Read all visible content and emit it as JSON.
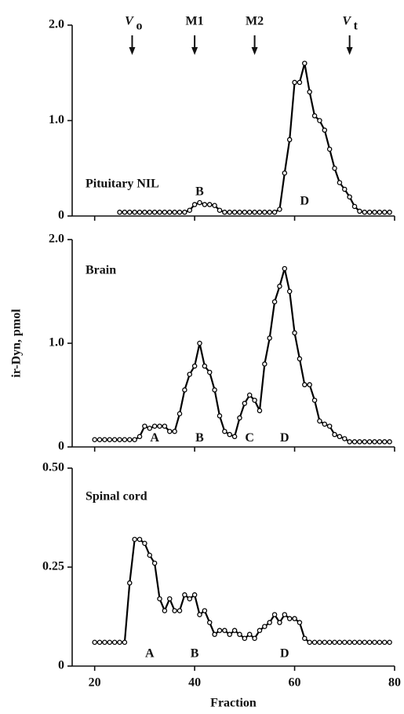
{
  "chart_data": [
    {
      "type": "line",
      "title": "Pituitary NIL",
      "color": "#000000",
      "x": [
        25,
        26,
        27,
        28,
        29,
        30,
        31,
        32,
        33,
        34,
        35,
        36,
        37,
        38,
        39,
        40,
        41,
        42,
        43,
        44,
        45,
        46,
        47,
        48,
        49,
        50,
        51,
        52,
        53,
        54,
        55,
        56,
        57,
        58,
        59,
        60,
        61,
        62,
        63,
        64,
        65,
        66,
        67,
        68,
        69,
        70,
        71,
        72,
        73,
        74,
        75,
        76,
        77,
        78,
        79
      ],
      "values": [
        0.04,
        0.04,
        0.04,
        0.04,
        0.04,
        0.04,
        0.04,
        0.04,
        0.04,
        0.04,
        0.04,
        0.04,
        0.04,
        0.04,
        0.06,
        0.12,
        0.14,
        0.12,
        0.12,
        0.11,
        0.06,
        0.04,
        0.04,
        0.04,
        0.04,
        0.04,
        0.04,
        0.04,
        0.04,
        0.04,
        0.04,
        0.04,
        0.07,
        0.45,
        0.8,
        1.4,
        1.4,
        1.6,
        1.3,
        1.05,
        1.0,
        0.9,
        0.7,
        0.5,
        0.35,
        0.28,
        0.2,
        0.1,
        0.05,
        0.04,
        0.04,
        0.04,
        0.04,
        0.04,
        0.04
      ],
      "xlim": [
        15.5,
        80
      ],
      "xticks": [
        20,
        40,
        60,
        80
      ],
      "ylim": [
        0,
        2
      ],
      "yticks": [
        0,
        {
          "value": 1,
          "label": "1.0"
        },
        {
          "value": 2,
          "label": "2.0"
        }
      ],
      "markers": [
        {
          "label": "V",
          "sub": "o",
          "x": 27.5
        },
        {
          "label": "M1",
          "x": 40
        },
        {
          "label": "M2",
          "x": 52
        },
        {
          "label": "V",
          "sub": "t",
          "x": 71
        }
      ],
      "annotations": [
        {
          "text": "B",
          "x": 41,
          "y": 0.25
        },
        {
          "text": "D",
          "x": 62,
          "y": 0.15
        }
      ]
    },
    {
      "type": "line",
      "title": "Brain",
      "color": "#000000",
      "ylabel": "ir-Dyn, pmol",
      "x": [
        20,
        21,
        22,
        23,
        24,
        25,
        26,
        27,
        28,
        29,
        30,
        31,
        32,
        33,
        34,
        35,
        36,
        37,
        38,
        39,
        40,
        41,
        42,
        43,
        44,
        45,
        46,
        47,
        48,
        49,
        50,
        51,
        52,
        53,
        54,
        55,
        56,
        57,
        58,
        59,
        60,
        61,
        62,
        63,
        64,
        65,
        66,
        67,
        68,
        69,
        70,
        71,
        72,
        73,
        74,
        75,
        76,
        77,
        78,
        79
      ],
      "values": [
        0.07,
        0.07,
        0.07,
        0.07,
        0.07,
        0.07,
        0.07,
        0.07,
        0.07,
        0.1,
        0.2,
        0.18,
        0.2,
        0.2,
        0.2,
        0.15,
        0.15,
        0.32,
        0.55,
        0.7,
        0.78,
        1.0,
        0.78,
        0.72,
        0.55,
        0.3,
        0.15,
        0.12,
        0.1,
        0.28,
        0.42,
        0.5,
        0.45,
        0.35,
        0.8,
        1.05,
        1.4,
        1.55,
        1.72,
        1.5,
        1.1,
        0.85,
        0.6,
        0.6,
        0.45,
        0.25,
        0.22,
        0.2,
        0.12,
        0.1,
        0.08,
        0.05,
        0.05,
        0.05,
        0.05,
        0.05,
        0.05,
        0.05,
        0.05,
        0.05
      ],
      "xlim": [
        15.5,
        80
      ],
      "xticks": [
        20,
        40,
        60,
        80
      ],
      "ylim": [
        0,
        2
      ],
      "yticks": [
        0,
        {
          "value": 1,
          "label": "1.0"
        },
        {
          "value": 2,
          "label": "2.0"
        }
      ],
      "annotations": [
        {
          "text": "A",
          "x": 32,
          "y": 0.08
        },
        {
          "text": "B",
          "x": 41,
          "y": 0.08
        },
        {
          "text": "C",
          "x": 51,
          "y": 0.08
        },
        {
          "text": "D",
          "x": 58,
          "y": 0.08
        }
      ]
    },
    {
      "type": "line",
      "title": "Spinal cord",
      "color": "#000000",
      "xlabel": "Fraction",
      "x": [
        20,
        21,
        22,
        23,
        24,
        25,
        26,
        27,
        28,
        29,
        30,
        31,
        32,
        33,
        34,
        35,
        36,
        37,
        38,
        39,
        40,
        41,
        42,
        43,
        44,
        45,
        46,
        47,
        48,
        49,
        50,
        51,
        52,
        53,
        54,
        55,
        56,
        57,
        58,
        59,
        60,
        61,
        62,
        63,
        64,
        65,
        66,
        67,
        68,
        69,
        70,
        71,
        72,
        73,
        74,
        75,
        76,
        77,
        78,
        79
      ],
      "values": [
        0.06,
        0.06,
        0.06,
        0.06,
        0.06,
        0.06,
        0.06,
        0.21,
        0.32,
        0.32,
        0.31,
        0.28,
        0.26,
        0.17,
        0.14,
        0.17,
        0.14,
        0.14,
        0.18,
        0.17,
        0.18,
        0.13,
        0.14,
        0.11,
        0.08,
        0.09,
        0.09,
        0.08,
        0.09,
        0.08,
        0.07,
        0.08,
        0.07,
        0.09,
        0.1,
        0.11,
        0.13,
        0.11,
        0.13,
        0.12,
        0.12,
        0.11,
        0.07,
        0.06,
        0.06,
        0.06,
        0.06,
        0.06,
        0.06,
        0.06,
        0.06,
        0.06,
        0.06,
        0.06,
        0.06,
        0.06,
        0.06,
        0.06,
        0.06,
        0.06
      ],
      "xlim": [
        15.5,
        80
      ],
      "xticks": [
        20,
        40,
        60,
        80
      ],
      "ylim": [
        0,
        0.5
      ],
      "yticks": [
        0,
        0.25,
        {
          "value": 0.5,
          "label": "0.50"
        }
      ],
      "annotations": [
        {
          "text": "A",
          "x": 31,
          "y": 0.03
        },
        {
          "text": "B",
          "x": 40,
          "y": 0.03
        },
        {
          "text": "D",
          "x": 58,
          "y": 0.03
        }
      ]
    }
  ]
}
